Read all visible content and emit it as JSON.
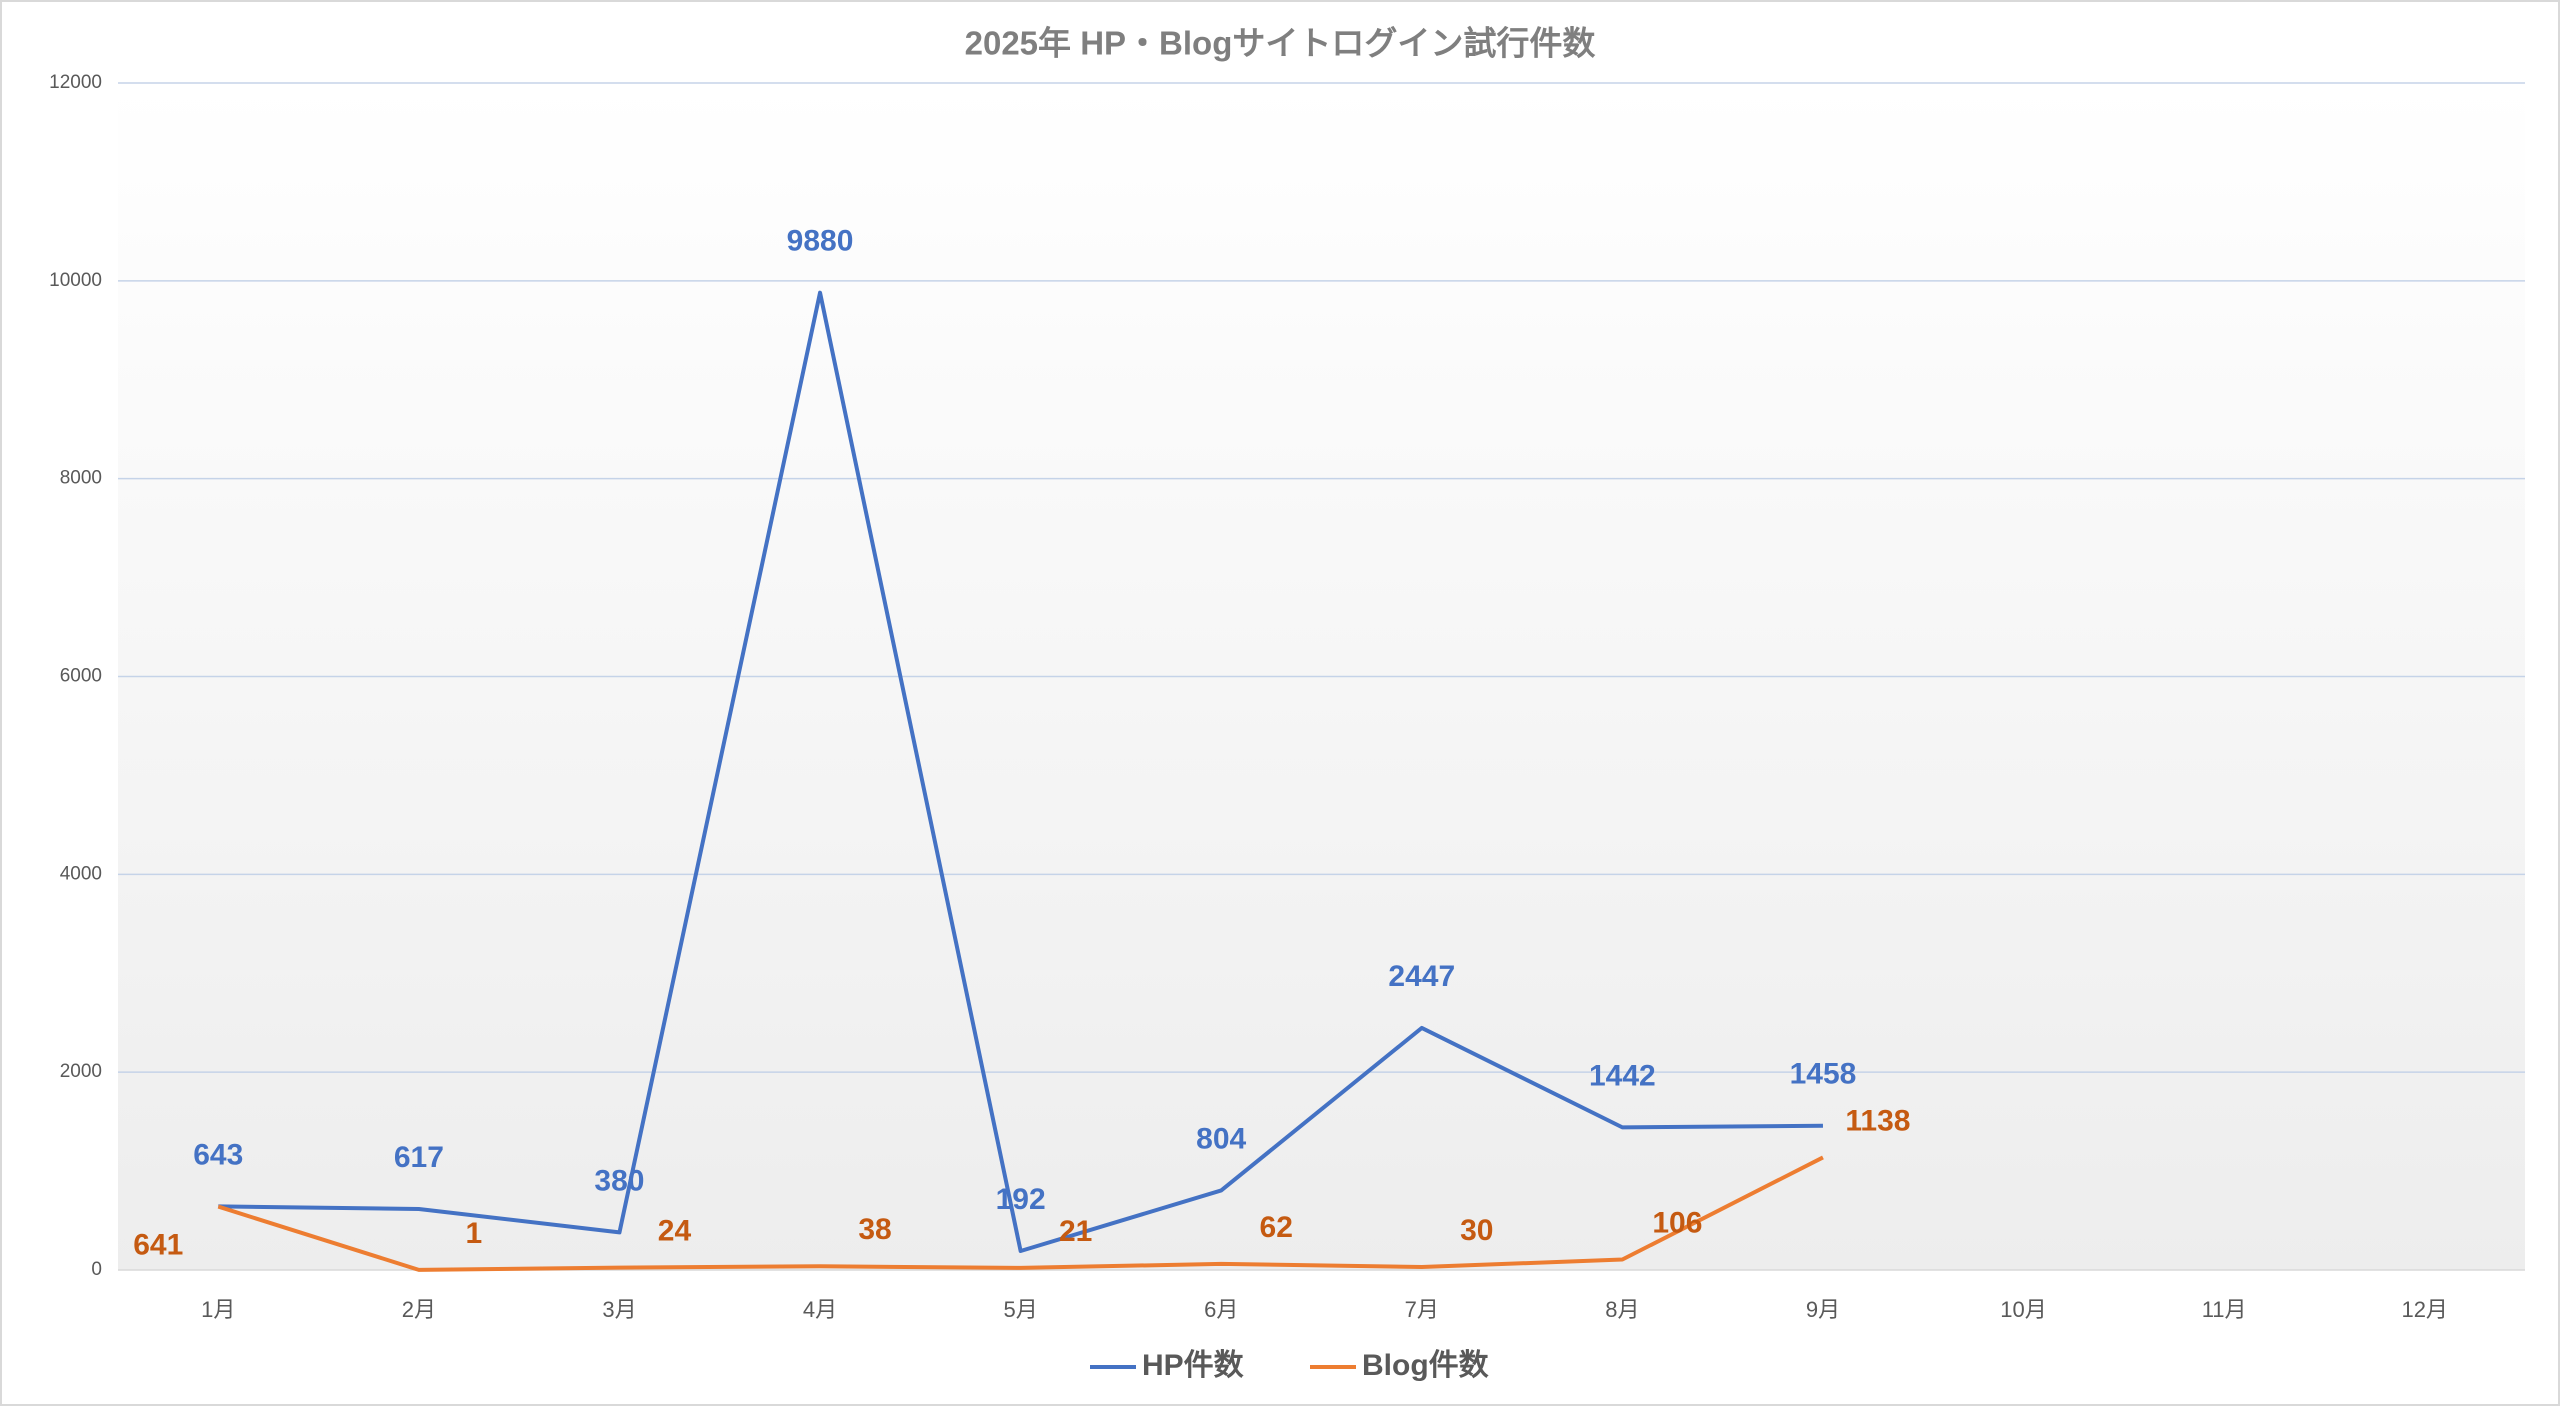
{
  "chart_data": {
    "type": "line",
    "title": "2025年 HP・Blogサイトログイン試行件数",
    "categories": [
      "1月",
      "2月",
      "3月",
      "4月",
      "5月",
      "6月",
      "7月",
      "8月",
      "9月",
      "10月",
      "11月",
      "12月"
    ],
    "series": [
      {
        "name": "HP件数",
        "color": "#4472c4",
        "label_color": "#4472c4",
        "values": [
          643,
          617,
          380,
          9880,
          192,
          804,
          2447,
          1442,
          1458,
          null,
          null,
          null
        ]
      },
      {
        "name": "Blog件数",
        "color": "#ed7d31",
        "label_color": "#c55a11",
        "values": [
          641,
          1,
          24,
          38,
          21,
          62,
          30,
          106,
          1138,
          null,
          null,
          null
        ]
      }
    ],
    "ylim": [
      0,
      12000
    ],
    "yticks": [
      0,
      2000,
      4000,
      6000,
      8000,
      10000,
      12000
    ],
    "grid": true,
    "legend": "bottom"
  }
}
